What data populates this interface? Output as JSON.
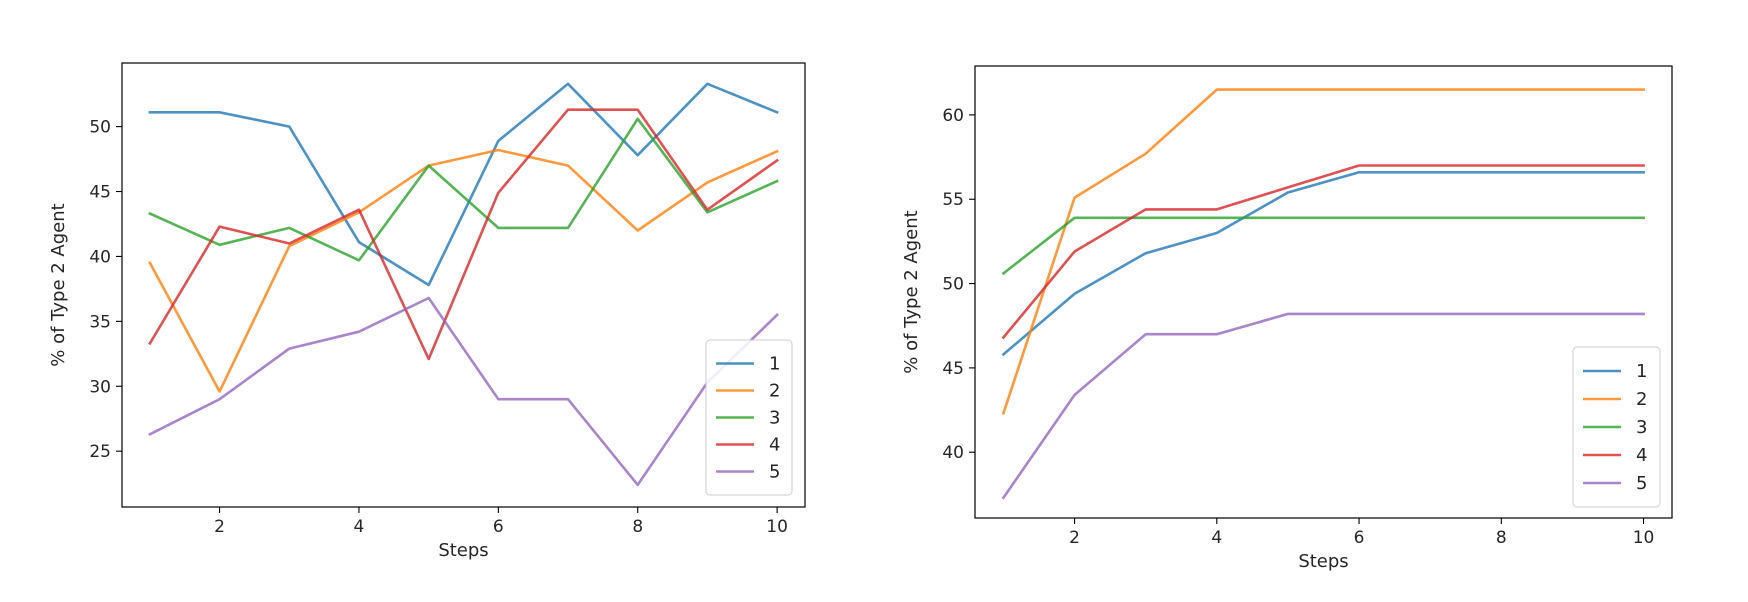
{
  "chart_data": [
    {
      "type": "line",
      "title": "",
      "xlabel": "Steps",
      "ylabel": "% of Type 2 Agent",
      "xlim": [
        0.6,
        10.4
      ],
      "ylim": [
        20.7,
        54.9
      ],
      "xticks": [
        2,
        4,
        6,
        8,
        10
      ],
      "yticks": [
        25,
        30,
        35,
        40,
        45,
        50
      ],
      "grid": false,
      "legend_position": "lower right",
      "x": [
        1,
        2,
        3,
        4,
        5,
        6,
        7,
        8,
        9,
        10
      ],
      "series": [
        {
          "name": "1",
          "color": "#1f77b4",
          "values": [
            51.1,
            51.1,
            50.0,
            41.1,
            37.8,
            48.9,
            53.3,
            47.8,
            53.3,
            51.1
          ]
        },
        {
          "name": "2",
          "color": "#ff7f0e",
          "values": [
            39.5,
            29.6,
            40.8,
            43.4,
            47.0,
            48.2,
            47.0,
            42.0,
            45.7,
            48.1
          ]
        },
        {
          "name": "3",
          "color": "#2ca02c",
          "values": [
            43.3,
            40.9,
            42.2,
            39.7,
            47.0,
            42.2,
            42.2,
            50.6,
            43.4,
            45.8
          ]
        },
        {
          "name": "4",
          "color": "#d62728",
          "values": [
            33.3,
            42.3,
            41.0,
            43.6,
            32.1,
            44.9,
            51.3,
            51.3,
            43.6,
            47.4
          ]
        },
        {
          "name": "5",
          "color": "#9467bd",
          "values": [
            26.3,
            29.0,
            32.9,
            34.2,
            36.8,
            29.0,
            29.0,
            22.4,
            30.3,
            35.5
          ]
        }
      ]
    },
    {
      "type": "line",
      "title": "",
      "xlabel": "Steps",
      "ylabel": "% of Type 2 Agent",
      "xlim": [
        0.6,
        10.4
      ],
      "ylim": [
        36.1,
        62.9
      ],
      "xticks": [
        2,
        4,
        6,
        8,
        10
      ],
      "yticks": [
        40,
        45,
        50,
        55,
        60
      ],
      "grid": false,
      "legend_position": "lower right",
      "x": [
        1,
        2,
        3,
        4,
        5,
        6,
        7,
        8,
        9,
        10
      ],
      "series": [
        {
          "name": "1",
          "color": "#1f77b4",
          "values": [
            45.8,
            49.4,
            51.8,
            53.0,
            55.4,
            56.6,
            56.6,
            56.6,
            56.6,
            56.6
          ]
        },
        {
          "name": "2",
          "color": "#ff7f0e",
          "values": [
            42.3,
            55.1,
            57.7,
            61.5,
            61.5,
            61.5,
            61.5,
            61.5,
            61.5,
            61.5
          ]
        },
        {
          "name": "3",
          "color": "#2ca02c",
          "values": [
            50.6,
            53.9,
            53.9,
            53.9,
            53.9,
            53.9,
            53.9,
            53.9,
            53.9,
            53.9
          ]
        },
        {
          "name": "4",
          "color": "#d62728",
          "values": [
            46.8,
            51.9,
            54.4,
            54.4,
            55.7,
            57.0,
            57.0,
            57.0,
            57.0,
            57.0
          ]
        },
        {
          "name": "5",
          "color": "#9467bd",
          "values": [
            37.3,
            43.4,
            47.0,
            47.0,
            48.2,
            48.2,
            48.2,
            48.2,
            48.2,
            48.2
          ]
        }
      ]
    }
  ]
}
